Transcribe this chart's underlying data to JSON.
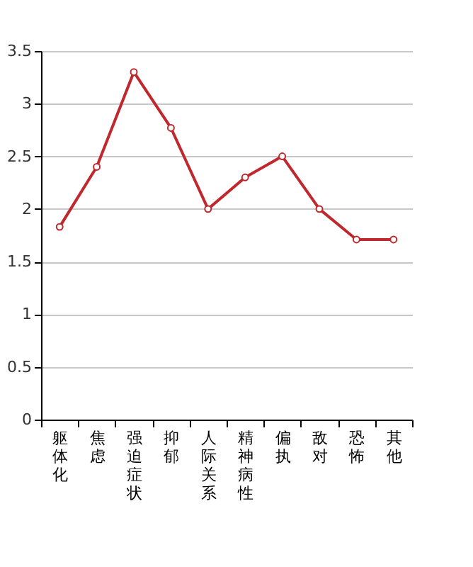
{
  "chart_data": {
    "type": "line",
    "categories": [
      "躯体化",
      "焦虑",
      "强迫症状",
      "抑郁",
      "人际关系",
      "精神病性",
      "偏执",
      "敌对",
      "恐怖",
      "其他"
    ],
    "series": [
      {
        "color": "#c0282d",
        "values": [
          1.83,
          2.4,
          3.3,
          2.77,
          2.0,
          2.3,
          2.5,
          2.0,
          1.71,
          1.71
        ]
      }
    ],
    "ylim": [
      0,
      3.5
    ],
    "yticks": [
      0,
      0.5,
      1,
      1.5,
      2,
      2.5,
      3,
      3.5
    ],
    "grid": "y",
    "marker": "circle",
    "line_style": "solid"
  }
}
